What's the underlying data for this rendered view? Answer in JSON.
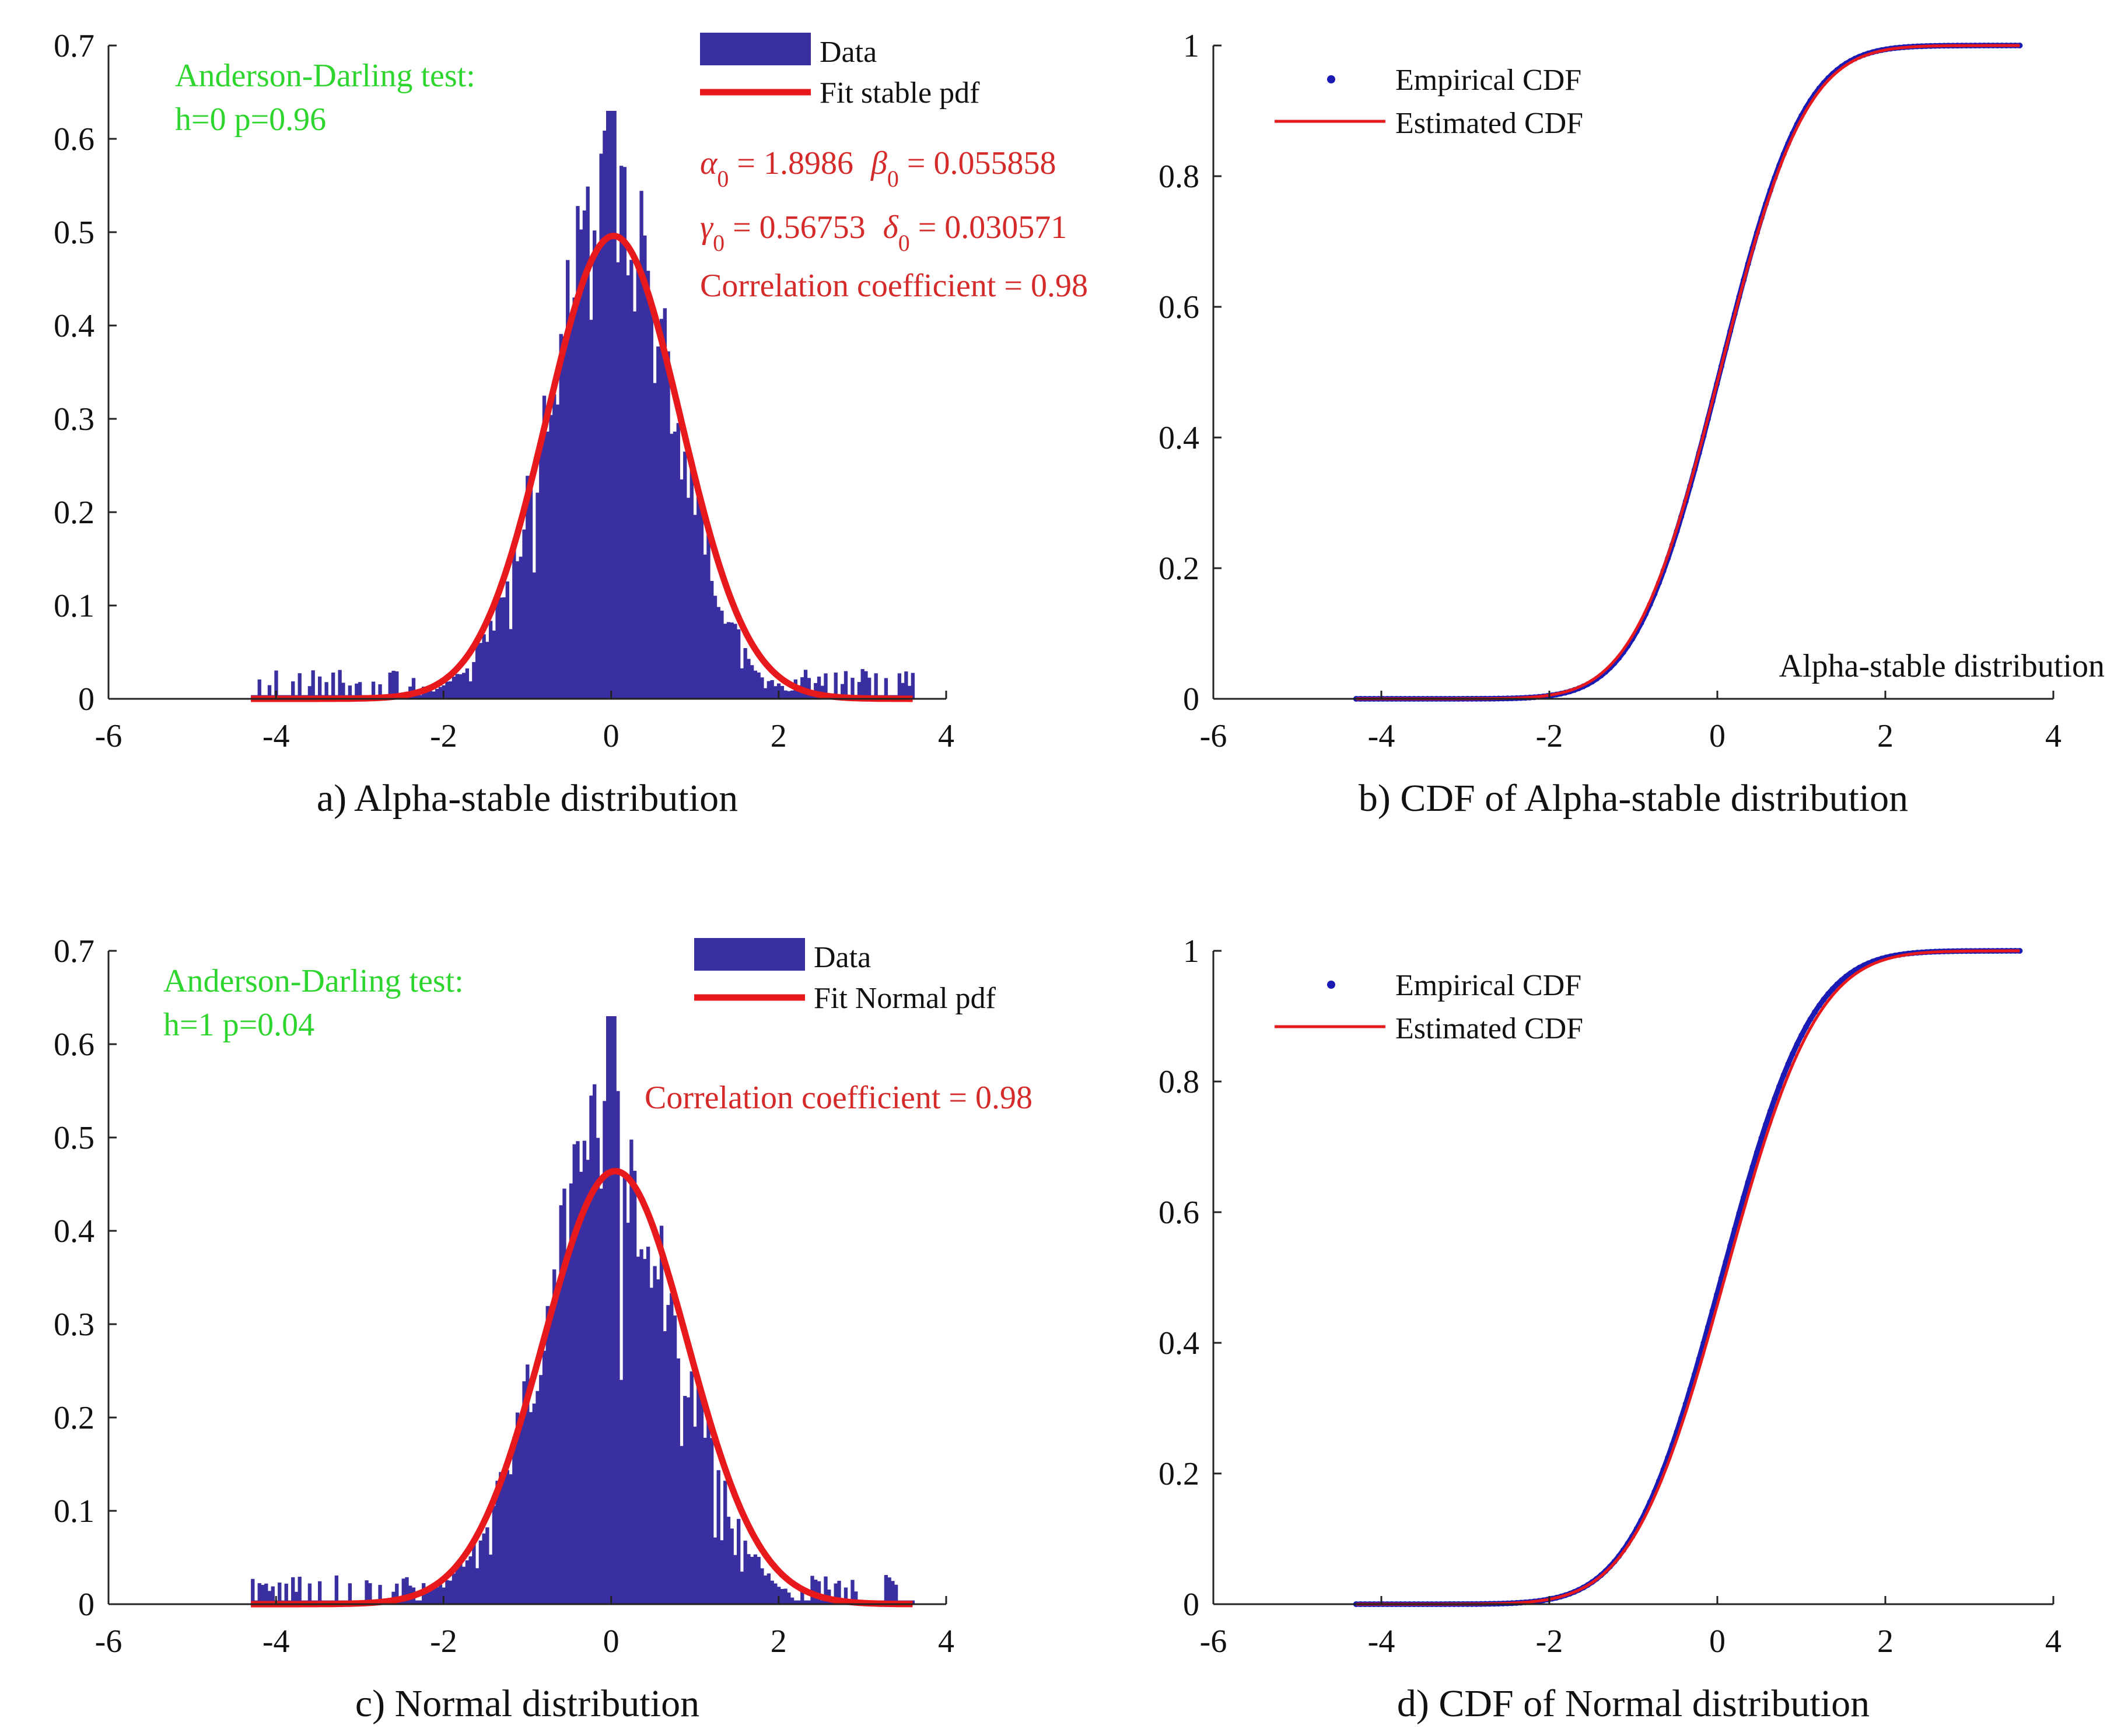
{
  "colors": {
    "bar": "#3a2fa0",
    "fit": "#e8191c",
    "annotation_red": "#d42a2a",
    "test_green": "#2ed52e",
    "empirical": "#1a1ab4",
    "axis": "#222222"
  },
  "chart_data": [
    {
      "id": "a",
      "type": "bar",
      "subtype": "histogram_with_fit",
      "caption": "a) Alpha-stable distribution",
      "xlim": [
        -6,
        4
      ],
      "ylim": [
        0,
        0.7
      ],
      "xticks": [
        "-6",
        "-4",
        "-2",
        "0",
        "2",
        "4"
      ],
      "yticks": [
        "0",
        "0.1",
        "0.2",
        "0.3",
        "0.4",
        "0.5",
        "0.6",
        "0.7"
      ],
      "legend": {
        "placement": "top-center",
        "entries": [
          "Data",
          "Fit stable pdf"
        ]
      },
      "test_text": [
        "Anderson-Darling test:",
        "h=0 p=0.96"
      ],
      "params": {
        "alpha": "1.8986",
        "beta": "0.055858",
        "gamma": "0.56753",
        "delta": "0.030571",
        "corr_text": "Correlation coefficient = 0.98"
      },
      "data_range": [
        -4.3,
        3.6
      ],
      "fit": {
        "dist": "stable",
        "mean": 0.03,
        "sd": 0.8,
        "peak": 0.496
      },
      "histogram_peak": 0.63
    },
    {
      "id": "b",
      "type": "line",
      "subtype": "cdf",
      "caption": "b) CDF of Alpha-stable distribution",
      "xlim": [
        -6,
        4
      ],
      "ylim": [
        0,
        1
      ],
      "xticks": [
        "-6",
        "-4",
        "-2",
        "0",
        "2",
        "4"
      ],
      "yticks": [
        "0",
        "0.2",
        "0.4",
        "0.6",
        "0.8",
        "1"
      ],
      "legend": {
        "placement": "top-left",
        "entries": [
          "Empirical CDF",
          "Estimated CDF"
        ]
      },
      "note": "Alpha-stable distribution",
      "data_range": [
        -4.3,
        3.6
      ],
      "cdf": {
        "mean": 0.03,
        "sd": 0.8
      }
    },
    {
      "id": "c",
      "type": "bar",
      "subtype": "histogram_with_fit",
      "caption": "c) Normal distribution",
      "xlim": [
        -6,
        4
      ],
      "ylim": [
        0,
        0.7
      ],
      "xticks": [
        "-6",
        "-4",
        "-2",
        "0",
        "2",
        "4"
      ],
      "yticks": [
        "0",
        "0.1",
        "0.2",
        "0.3",
        "0.4",
        "0.5",
        "0.6",
        "0.7"
      ],
      "legend": {
        "placement": "top-center",
        "entries": [
          "Data",
          "Fit Normal pdf"
        ]
      },
      "test_text": [
        "Anderson-Darling test:",
        "h=1 p=0.04"
      ],
      "params": {
        "corr_text": "Correlation coefficient = 0.98"
      },
      "data_range": [
        -4.3,
        3.6
      ],
      "fit": {
        "dist": "normal",
        "mean": 0.05,
        "sd": 0.86,
        "peak": 0.464
      },
      "histogram_peak": 0.63
    },
    {
      "id": "d",
      "type": "line",
      "subtype": "cdf",
      "caption": "d) CDF of Normal distribution",
      "xlim": [
        -6,
        4
      ],
      "ylim": [
        0,
        1
      ],
      "xticks": [
        "-6",
        "-4",
        "-2",
        "0",
        "2",
        "4"
      ],
      "yticks": [
        "0",
        "0.2",
        "0.4",
        "0.6",
        "0.8",
        "1"
      ],
      "legend": {
        "placement": "top-left",
        "entries": [
          "Empirical CDF",
          "Estimated CDF"
        ]
      },
      "data_range": [
        -4.3,
        3.6
      ],
      "cdf": {
        "mean": 0.05,
        "sd": 0.86
      }
    }
  ]
}
